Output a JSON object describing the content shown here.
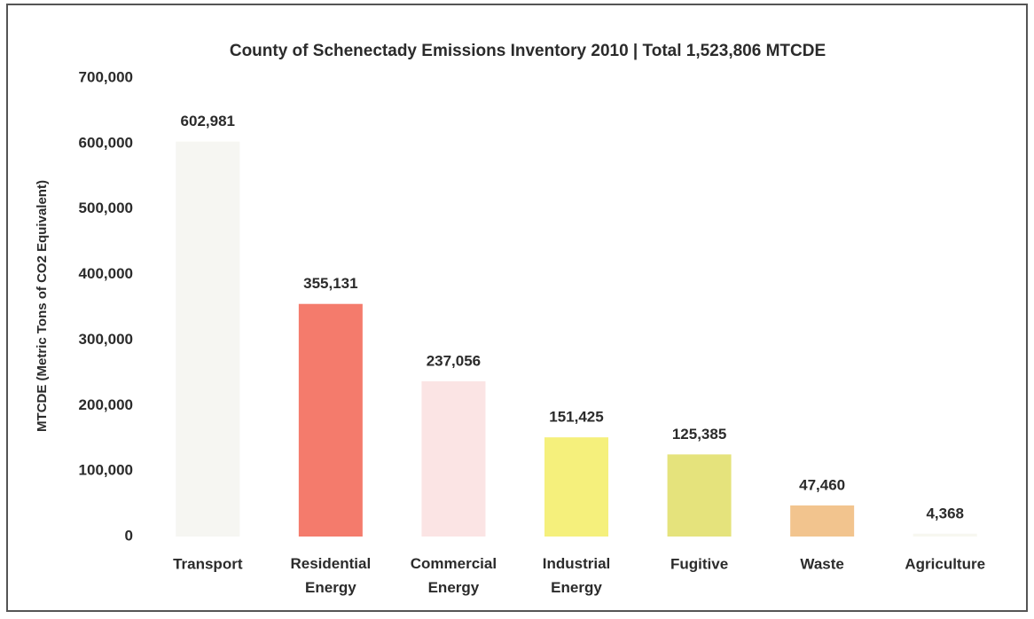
{
  "chart_data": {
    "type": "bar",
    "title": "County of Schenectady Emissions Inventory 2010 | Total 1,523,806 MTCDE",
    "y_label": "MTCDE (Metric Tons of CO2 Equivalent)",
    "categories": [
      "Transport",
      "Residential Energy",
      "Commercial Energy",
      "Industrial Energy",
      "Fugitive",
      "Waste",
      "Agriculture"
    ],
    "values": [
      602981,
      355131,
      237056,
      151425,
      125385,
      47460,
      4368
    ],
    "value_labels": [
      "602,981",
      "355,131",
      "237,056",
      "151,425",
      "125,385",
      "47,460",
      "4,368"
    ],
    "colors": [
      "#f6f6f2",
      "#f47b6c",
      "#fbe4e4",
      "#f5f07c",
      "#e5e37c",
      "#f2c48e",
      "#f7f7f0"
    ],
    "ylim": [
      0,
      700000
    ],
    "yticks": [
      0,
      {
        "value": 100000,
        "label": "100,000"
      },
      {
        "value": 200000,
        "label": "200,000"
      },
      {
        "value": 300000,
        "label": "300,000"
      },
      {
        "value": 400000,
        "label": "400,000"
      },
      {
        "value": 500000,
        "label": "500,000"
      },
      {
        "value": 600000,
        "label": "600,000"
      },
      {
        "value": 700000,
        "label": "700,000"
      }
    ],
    "grid": false
  }
}
